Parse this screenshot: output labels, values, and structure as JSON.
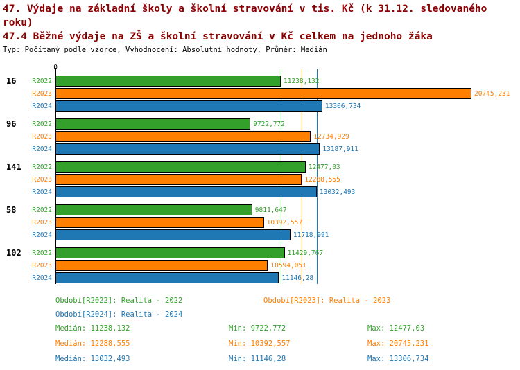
{
  "header": {
    "title1": "47. Výdaje na základní školy a školní stravování v tis. Kč (k 31.12. sledovaného roku)",
    "title2": "47.4 Běžné výdaje na ZŠ a školní stravování v Kč celkem na jednoho žáka",
    "meta": "Typ: Počítaný podle vzorce, Vyhodnocení: Absolutní hodnoty, Průměr: Medián"
  },
  "chart_data": {
    "type": "bar",
    "orientation": "horizontal",
    "x_axis": {
      "zero_label": "0",
      "min": 0,
      "max_value": 20745.231
    },
    "grid": "median-lines-only",
    "legend_position": "bottom",
    "series": [
      {
        "name": "R2022",
        "label": "Realita - 2022",
        "color": "#33a02c"
      },
      {
        "name": "R2023",
        "label": "Realita - 2023",
        "color": "#ff7f00"
      },
      {
        "name": "R2024",
        "label": "Realita - 2024",
        "color": "#1f77b4"
      }
    ],
    "groups": [
      {
        "label": "16",
        "values": [
          11238.132,
          20745.231,
          13306.734
        ],
        "value_labels": [
          "11238,132",
          "20745,231",
          "13306,734"
        ]
      },
      {
        "label": "96",
        "values": [
          9722.772,
          12734.929,
          13187.911
        ],
        "value_labels": [
          "9722,772",
          "12734,929",
          "13187,911"
        ]
      },
      {
        "label": "141",
        "values": [
          12477.03,
          12288.555,
          13032.493
        ],
        "value_labels": [
          "12477,03",
          "12288,555",
          "13032,493"
        ]
      },
      {
        "label": "58",
        "values": [
          9811.647,
          10392.557,
          11718.991
        ],
        "value_labels": [
          "9811,647",
          "10392,557",
          "11718,991"
        ]
      },
      {
        "label": "102",
        "values": [
          11429.767,
          10594.051,
          11146.28
        ],
        "value_labels": [
          "11429,767",
          "10594,051",
          "11146,28"
        ]
      }
    ],
    "median_lines": [
      {
        "value": 11238.132,
        "color": "#33a02c"
      },
      {
        "value": 12288.555,
        "color": "#ff7f00"
      },
      {
        "value": 13032.493,
        "color": "#1f77b4"
      }
    ]
  },
  "legend": {
    "items": [
      {
        "label": "Období[R2022]: Realita - 2022",
        "color": "#33a02c"
      },
      {
        "label": "Období[R2023]: Realita - 2023",
        "color": "#ff7f00"
      },
      {
        "label": "Období[R2024]: Realita - 2024",
        "color": "#1f77b4"
      }
    ]
  },
  "stats": {
    "rows": [
      {
        "median": "Medián: 11238,132",
        "min": "Min: 9722,772",
        "max": "Max: 12477,03",
        "color": "#33a02c"
      },
      {
        "median": "Medián: 12288,555",
        "min": "Min: 10392,557",
        "max": "Max: 20745,231",
        "color": "#ff7f00"
      },
      {
        "median": "Medián: 13032,493",
        "min": "Min: 11146,28",
        "max": "Max: 13306,734",
        "color": "#1f77b4"
      }
    ]
  }
}
